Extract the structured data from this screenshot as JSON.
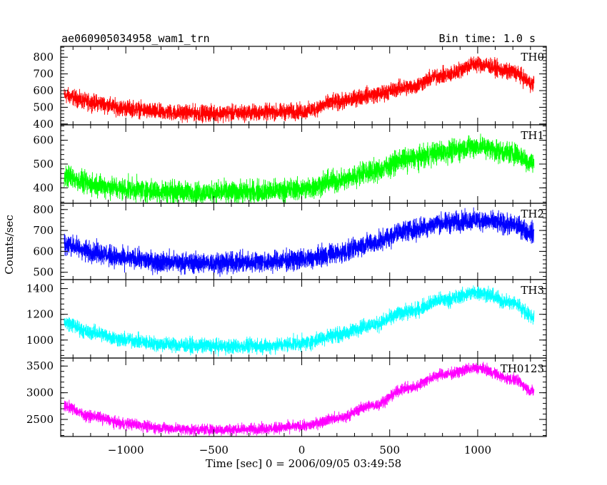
{
  "header": {
    "left": "ae060905034958_wam1_trn",
    "right": "Bin time: 1.0 s"
  },
  "chart_data": {
    "type": "line",
    "title": "ae060905034958_wam1_trn",
    "xlabel": "Time [sec] 0 = 2006/09/05 03:49:58",
    "ylabel": "Counts/sec",
    "xlim": [
      -1370,
      1390
    ],
    "x_ticks": [
      -1000,
      -500,
      0,
      500,
      1000
    ],
    "x_tick_labels": [
      "−1000",
      "−500",
      "0",
      "500",
      "1000"
    ],
    "x_sample": [
      -1350,
      -1200,
      -1000,
      -800,
      -600,
      -400,
      -200,
      0,
      200,
      400,
      600,
      800,
      1000,
      1200,
      1320
    ],
    "panels": [
      {
        "name": "TH0",
        "color": "#ff0000",
        "ylim": [
          395,
          865
        ],
        "y_ticks": [
          400,
          500,
          600,
          700,
          800
        ],
        "values": [
          570,
          530,
          495,
          470,
          465,
          465,
          470,
          475,
          530,
          575,
          620,
          690,
          760,
          710,
          640
        ],
        "noise": 42
      },
      {
        "name": "TH1",
        "color": "#00ff00",
        "ylim": [
          335,
          665
        ],
        "y_ticks": [
          400,
          500,
          600
        ],
        "values": [
          450,
          415,
          395,
          385,
          380,
          382,
          385,
          395,
          430,
          470,
          520,
          550,
          575,
          545,
          505
        ],
        "noise": 40
      },
      {
        "name": "TH2",
        "color": "#0000ff",
        "ylim": [
          465,
          830
        ],
        "y_ticks": [
          500,
          600,
          700,
          800
        ],
        "values": [
          635,
          600,
          565,
          550,
          545,
          545,
          550,
          560,
          590,
          640,
          700,
          735,
          750,
          725,
          690
        ],
        "noise": 42
      },
      {
        "name": "TH3",
        "color": "#00ffff",
        "ylim": [
          860,
          1470
        ],
        "y_ticks": [
          1000,
          1200,
          1400
        ],
        "values": [
          1135,
          1060,
          1000,
          970,
          955,
          950,
          955,
          975,
          1040,
          1120,
          1220,
          1310,
          1370,
          1290,
          1180
        ],
        "noise": 50
      },
      {
        "name": "TH0123",
        "color": "#ff00ff",
        "ylim": [
          2180,
          3650
        ],
        "y_ticks": [
          2500,
          3000,
          3500
        ],
        "values": [
          2750,
          2560,
          2420,
          2340,
          2310,
          2310,
          2330,
          2370,
          2520,
          2760,
          3080,
          3340,
          3460,
          3250,
          3030
        ],
        "noise": 90
      }
    ]
  }
}
